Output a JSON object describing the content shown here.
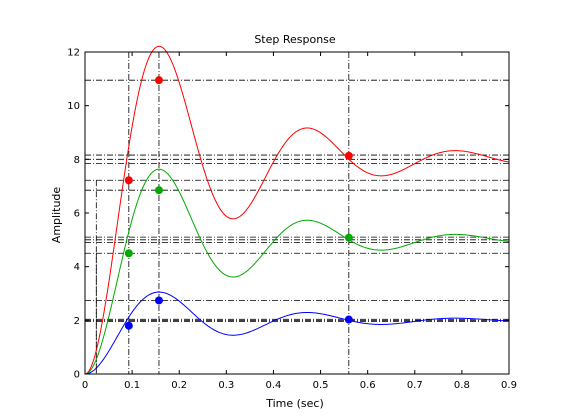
{
  "chart_data": {
    "type": "line",
    "title": "Step Response",
    "xlabel": "Time (sec)",
    "ylabel": "Amplitude",
    "xlim": [
      0,
      0.9
    ],
    "ylim": [
      0,
      12
    ],
    "x_ticks": [
      "0",
      "0.1",
      "0.2",
      "0.3",
      "0.4",
      "0.5",
      "0.6",
      "0.7",
      "0.8",
      "0.9"
    ],
    "y_ticks": [
      "0",
      "2",
      "4",
      "6",
      "8",
      "10",
      "12"
    ],
    "grid": false,
    "legend": "none",
    "series": [
      {
        "color": "#ff0000",
        "final_value": 8.0,
        "peak": {
          "t": 0.157,
          "y": 10.95
        },
        "rise_point": {
          "t": 0.093,
          "y": 7.22
        },
        "settling_point": {
          "t": 0.56,
          "y": 8.13
        },
        "band": [
          7.84,
          8.16
        ],
        "model": {
          "A": 8.0,
          "zeta": 0.2,
          "wn": 20.4
        }
      },
      {
        "color": "#00aa00",
        "final_value": 5.0,
        "peak": {
          "t": 0.157,
          "y": 6.85
        },
        "rise_point": {
          "t": 0.093,
          "y": 4.5
        },
        "settling_point": {
          "t": 0.56,
          "y": 5.08
        },
        "band": [
          4.9,
          5.1
        ],
        "model": {
          "A": 5.0,
          "zeta": 0.2,
          "wn": 20.4
        }
      },
      {
        "color": "#0000ff",
        "final_value": 2.0,
        "peak": {
          "t": 0.157,
          "y": 2.74
        },
        "rise_point": {
          "t": 0.093,
          "y": 1.8
        },
        "settling_point": {
          "t": 0.56,
          "y": 2.03
        },
        "band": [
          1.96,
          2.04
        ],
        "model": {
          "A": 2.0,
          "zeta": 0.2,
          "wn": 20.4
        }
      }
    ],
    "reference_lines": {
      "horizontal": [
        10.95,
        8.16,
        8.0,
        7.84,
        7.22,
        6.85,
        5.1,
        5.0,
        4.9,
        4.5,
        2.74,
        2.04,
        2.0,
        1.96
      ],
      "vertical": [
        0.093,
        0.157,
        0.56
      ],
      "rise_start_vertical": 0.024,
      "rise_start_levels": [
        7.22,
        4.5
      ]
    }
  }
}
